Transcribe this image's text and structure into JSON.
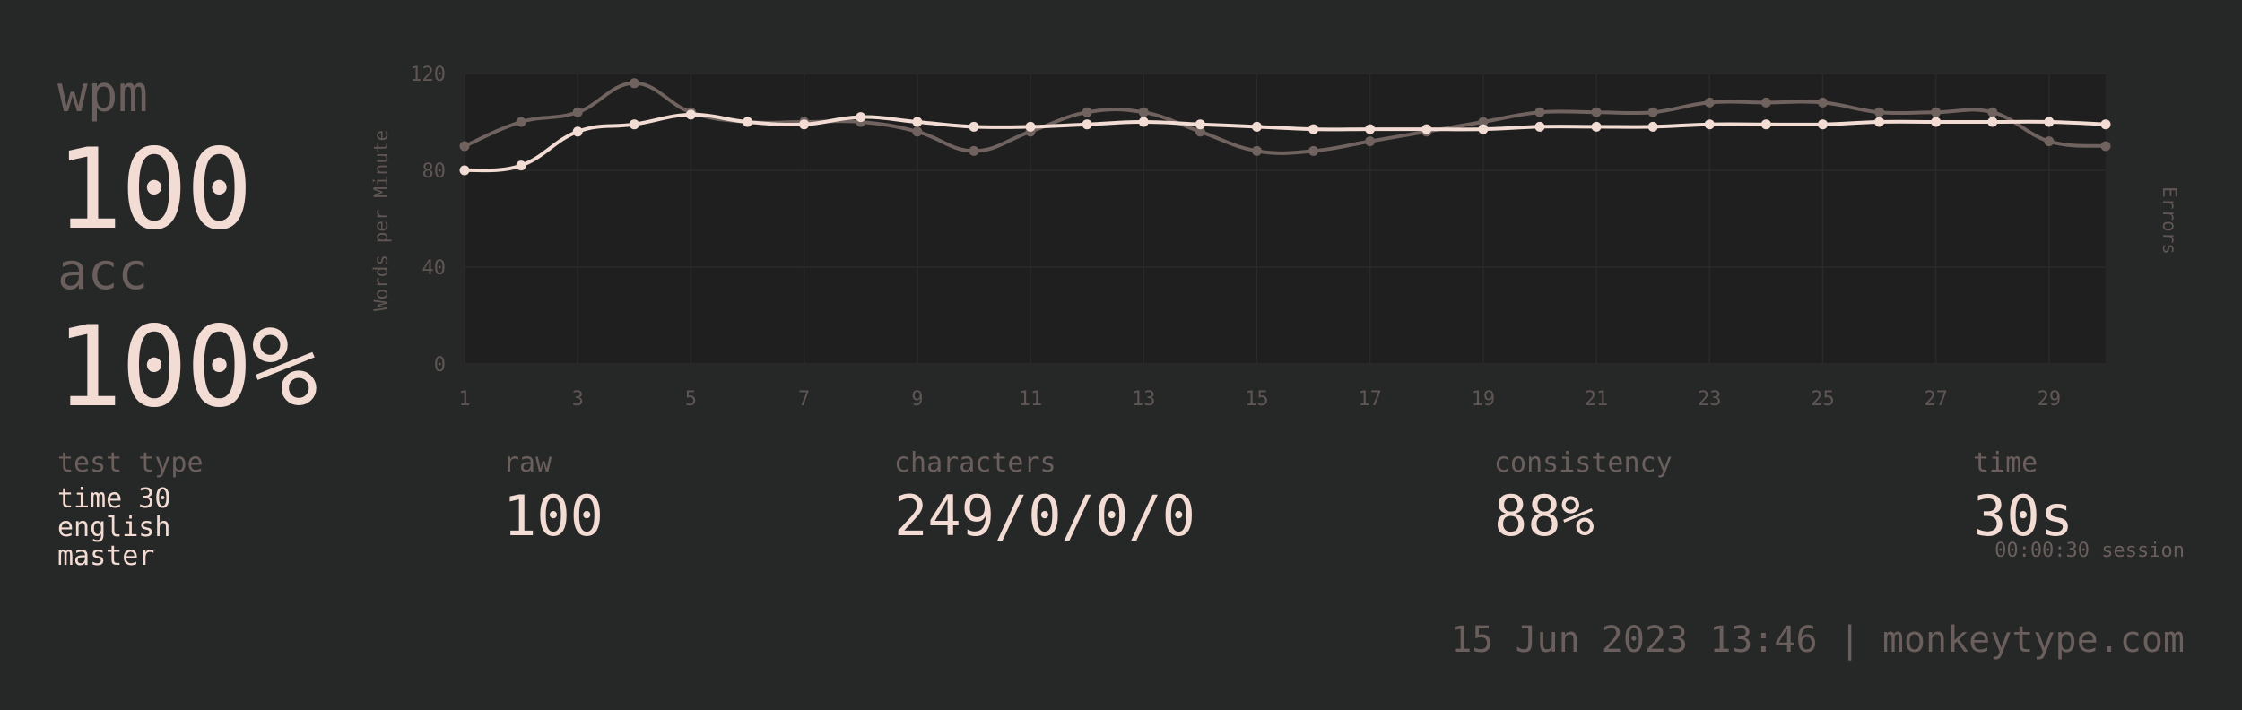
{
  "colors": {
    "background": "#262727",
    "plot_bg": "#1f1f1f",
    "main": "#f3dcd4",
    "sub": "#6a5f5c",
    "raw_line": "#6f625f"
  },
  "stats": {
    "wpm_label": "wpm",
    "wpm_value": "100",
    "acc_label": "acc",
    "acc_value": "100%"
  },
  "test_type": {
    "label": "test type",
    "lines": [
      "time 30",
      "english",
      "master"
    ]
  },
  "raw": {
    "label": "raw",
    "value": "100"
  },
  "characters": {
    "label": "characters",
    "value": "249/0/0/0"
  },
  "consistency": {
    "label": "consistency",
    "value": "88%"
  },
  "time": {
    "label": "time",
    "value": "30s",
    "session": "00:00:30 session"
  },
  "footer": "15 Jun 2023 13:46 | monkeytype.com",
  "chart_data": {
    "type": "line",
    "ylabel": "Words per Minute",
    "y2label": "Errors",
    "ylim": [
      0,
      120
    ],
    "yticks": [
      0,
      40,
      80,
      120
    ],
    "x": [
      1,
      2,
      3,
      4,
      5,
      6,
      7,
      8,
      9,
      10,
      11,
      12,
      13,
      14,
      15,
      16,
      17,
      18,
      19,
      20,
      21,
      22,
      23,
      24,
      25,
      26,
      27,
      28,
      29,
      30
    ],
    "xticks": [
      1,
      3,
      5,
      7,
      9,
      11,
      13,
      15,
      17,
      19,
      21,
      23,
      25,
      27,
      29
    ],
    "grid": true,
    "series": [
      {
        "role": "raw",
        "color": "#6f625f",
        "values": [
          90,
          100,
          104,
          116,
          104,
          100,
          100,
          100,
          96,
          88,
          96,
          104,
          104,
          96,
          88,
          88,
          92,
          96,
          100,
          104,
          104,
          104,
          108,
          108,
          108,
          104,
          104,
          104,
          92,
          90
        ]
      },
      {
        "role": "wpm",
        "color": "#f3dcd4",
        "values": [
          80,
          82,
          96,
          99,
          103,
          100,
          99,
          102,
          100,
          98,
          98,
          99,
          100,
          99,
          98,
          97,
          97,
          97,
          97,
          98,
          98,
          98,
          99,
          99,
          99,
          100,
          100,
          100,
          100,
          99
        ]
      }
    ]
  }
}
